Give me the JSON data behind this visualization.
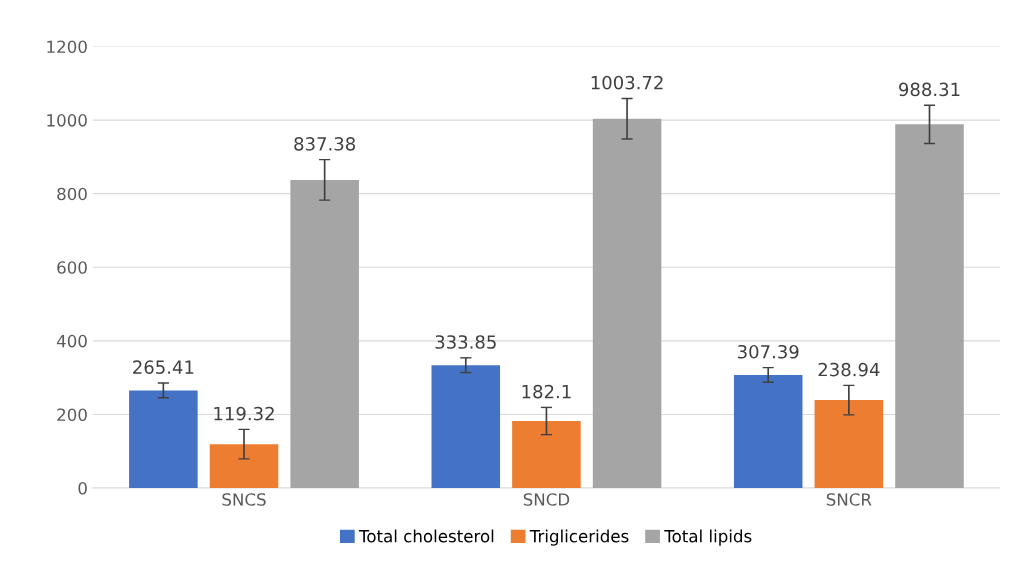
{
  "chart_data": {
    "type": "bar",
    "categories": [
      "SNCS",
      "SNCD",
      "SNCR"
    ],
    "series": [
      {
        "name": "Total cholesterol",
        "color": "#4472c4",
        "values": [
          265.41,
          333.85,
          307.39
        ],
        "errors": [
          20,
          20,
          20
        ]
      },
      {
        "name": "Triglicerides",
        "color": "#ed7d31",
        "values": [
          119.32,
          182.1,
          238.94
        ],
        "errors": [
          40,
          37,
          40
        ]
      },
      {
        "name": "Total lipids",
        "color": "#a5a5a5",
        "values": [
          837.38,
          1003.72,
          988.31
        ],
        "errors": [
          55,
          55,
          52
        ]
      }
    ],
    "ylim": [
      0,
      1200
    ],
    "yticks": [
      0,
      200,
      400,
      600,
      800,
      1000,
      1200
    ],
    "grid": "y",
    "legend": "bottom",
    "data_labels": true
  }
}
